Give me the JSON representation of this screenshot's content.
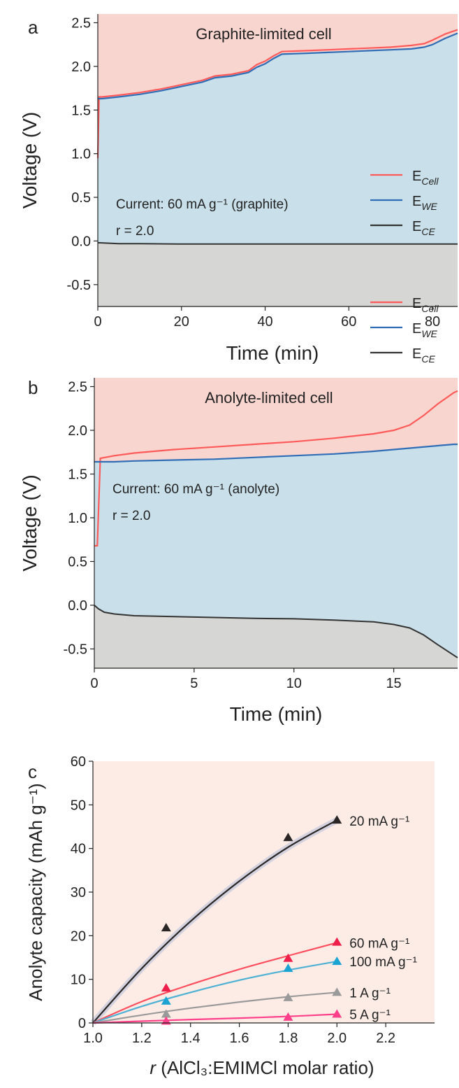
{
  "figure": {
    "panels": [
      "a",
      "b",
      "c"
    ]
  },
  "chart_data": [
    {
      "panel": "a",
      "type": "line",
      "title": "Graphite-limited cell",
      "xlabel": "Time (min)",
      "ylabel": "Voltage (V)",
      "xlim": [
        0,
        86
      ],
      "ylim": [
        -0.75,
        2.6
      ],
      "xticks": [
        0,
        20,
        40,
        60,
        80
      ],
      "yticks": [
        -0.5,
        0.0,
        0.5,
        1.0,
        1.5,
        2.0,
        2.5
      ],
      "annotation": "Current: 60 mA g⁻¹ (graphite)",
      "ratio_label": "r = 2.0",
      "legend_position": "right",
      "area_colors": {
        "cell": "#f9d5d0",
        "we": "#c9e0ea",
        "ce": "#d6d6d4"
      },
      "series": [
        {
          "name": "E_Cell",
          "label_main": "E",
          "label_sub": "Cell",
          "color": "#ff5a5a",
          "x": [
            0,
            0.3,
            1,
            5,
            10,
            15,
            20,
            25,
            28,
            32,
            36,
            38,
            40,
            42,
            44,
            50,
            55,
            60,
            65,
            70,
            75,
            78,
            80,
            83,
            86
          ],
          "y": [
            0.95,
            1.65,
            1.65,
            1.67,
            1.7,
            1.74,
            1.79,
            1.84,
            1.89,
            1.91,
            1.95,
            2.02,
            2.06,
            2.12,
            2.17,
            2.18,
            2.19,
            2.2,
            2.21,
            2.22,
            2.24,
            2.26,
            2.3,
            2.37,
            2.42
          ]
        },
        {
          "name": "E_WE",
          "label_main": "E",
          "label_sub": "WE",
          "color": "#2f6db6",
          "x": [
            0,
            0.3,
            1,
            5,
            10,
            15,
            20,
            25,
            28,
            32,
            36,
            38,
            40,
            42,
            44,
            50,
            55,
            60,
            65,
            70,
            75,
            78,
            80,
            83,
            86
          ],
          "y": [
            1.63,
            1.63,
            1.63,
            1.65,
            1.68,
            1.72,
            1.77,
            1.82,
            1.87,
            1.89,
            1.93,
            1.99,
            2.03,
            2.09,
            2.14,
            2.15,
            2.16,
            2.17,
            2.18,
            2.19,
            2.2,
            2.22,
            2.25,
            2.32,
            2.38
          ]
        },
        {
          "name": "E_CE",
          "label_main": "E",
          "label_sub": "CE",
          "color": "#333333",
          "x": [
            0,
            5,
            10,
            20,
            30,
            40,
            50,
            60,
            70,
            80,
            86
          ],
          "y": [
            -0.02,
            -0.03,
            -0.03,
            -0.035,
            -0.035,
            -0.035,
            -0.035,
            -0.035,
            -0.035,
            -0.035,
            -0.035
          ]
        }
      ]
    },
    {
      "panel": "b",
      "type": "line",
      "title": "Anolyte-limited cell",
      "xlabel": "Time (min)",
      "ylabel": "Voltage (V)",
      "xlim": [
        0,
        18.2
      ],
      "ylim": [
        -0.72,
        2.6
      ],
      "xticks": [
        0,
        5,
        10,
        15
      ],
      "yticks": [
        -0.5,
        0.0,
        0.5,
        1.0,
        1.5,
        2.0,
        2.5
      ],
      "annotation": "Current: 60 mA g⁻¹ (anolyte)",
      "ratio_label": "r = 2.0",
      "legend_position": "right",
      "area_colors": {
        "cell": "#f9d5d0",
        "we": "#c9e0ea",
        "ce": "#d6d6d4"
      },
      "series": [
        {
          "name": "E_Cell",
          "label_main": "E",
          "label_sub": "Cell",
          "color": "#ff5a5a",
          "x": [
            0,
            0.15,
            0.3,
            1,
            2,
            4,
            6,
            8,
            10,
            12,
            14,
            15,
            15.8,
            16.5,
            17.2,
            18,
            18.2
          ],
          "y": [
            0.68,
            0.68,
            1.68,
            1.71,
            1.74,
            1.78,
            1.81,
            1.84,
            1.87,
            1.91,
            1.96,
            2.0,
            2.06,
            2.17,
            2.3,
            2.43,
            2.45
          ]
        },
        {
          "name": "E_WE",
          "label_main": "E",
          "label_sub": "WE",
          "color": "#2f6db6",
          "x": [
            0,
            0.3,
            1,
            2,
            4,
            6,
            8,
            10,
            12,
            14,
            15,
            16,
            17,
            18,
            18.2
          ],
          "y": [
            1.64,
            1.64,
            1.64,
            1.65,
            1.66,
            1.67,
            1.69,
            1.71,
            1.73,
            1.76,
            1.78,
            1.8,
            1.82,
            1.84,
            1.84
          ]
        },
        {
          "name": "E_CE",
          "label_main": "E",
          "label_sub": "CE",
          "color": "#333333",
          "x": [
            0,
            0.2,
            0.5,
            1,
            2,
            4,
            6,
            8,
            10,
            12,
            14,
            15,
            15.8,
            16.5,
            17.2,
            18,
            18.2
          ],
          "y": [
            0.0,
            -0.04,
            -0.08,
            -0.1,
            -0.12,
            -0.13,
            -0.14,
            -0.15,
            -0.155,
            -0.17,
            -0.19,
            -0.22,
            -0.26,
            -0.34,
            -0.45,
            -0.57,
            -0.6
          ]
        }
      ]
    },
    {
      "panel": "c",
      "type": "line",
      "title": "",
      "xlabel": "r (AlCl₃:EMIMCl molar ratio)",
      "xlabel_italic": "r",
      "xlabel_rest": " (AlCl₃:EMIMCl molar ratio)",
      "ylabel": "Anolyte capacity (mAh g⁻¹)",
      "xlim": [
        1.0,
        2.4
      ],
      "ylim": [
        0,
        60
      ],
      "xticks": [
        1.0,
        1.2,
        1.4,
        1.6,
        1.8,
        2.0,
        2.2
      ],
      "xtick_labels": [
        "1.0",
        "1.2",
        "1.4",
        "1.6",
        "1.8",
        "2.0",
        "2.2"
      ],
      "yticks": [
        0,
        10,
        20,
        30,
        40,
        50,
        60
      ],
      "background": "#fdece6",
      "series": [
        {
          "name": "20 mA g⁻¹",
          "color": "#2a2626",
          "marker_color": "#2a2626",
          "points_x": [
            1.3,
            1.8,
            2.0
          ],
          "points_y": [
            21.8,
            42.5,
            46.5
          ],
          "fit_x": [
            1.0,
            1.2,
            1.4,
            1.6,
            1.8,
            2.0
          ],
          "fit_y": [
            0.0,
            12.5,
            23.3,
            32.5,
            40.3,
            46.5
          ]
        },
        {
          "name": "60 mA g⁻¹",
          "color": "#ff4f5e",
          "marker_color": "#ee1f4a",
          "points_x": [
            1.3,
            1.8,
            2.0
          ],
          "points_y": [
            8.0,
            14.8,
            18.5
          ],
          "fit_x": [
            1.0,
            1.2,
            1.4,
            1.6,
            1.8,
            2.0
          ],
          "fit_y": [
            0.0,
            4.9,
            8.8,
            12.3,
            15.4,
            18.4
          ]
        },
        {
          "name": "100 mA g⁻¹",
          "color": "#4fb1d4",
          "marker_color": "#1aa3d3",
          "points_x": [
            1.3,
            1.8,
            2.0
          ],
          "points_y": [
            5.0,
            12.5,
            14.1
          ],
          "fit_x": [
            1.0,
            1.2,
            1.4,
            1.6,
            1.8,
            2.0
          ],
          "fit_y": [
            0.0,
            3.8,
            7.0,
            9.8,
            12.1,
            14.1
          ]
        },
        {
          "name": "1 A g⁻¹",
          "color": "#9a9a9a",
          "marker_color": "#9a9a9a",
          "points_x": [
            1.3,
            1.8,
            2.0
          ],
          "points_y": [
            2.0,
            5.8,
            7.0
          ],
          "fit_x": [
            1.0,
            1.2,
            1.4,
            1.6,
            1.8,
            2.0
          ],
          "fit_y": [
            0.0,
            1.8,
            3.4,
            4.8,
            6.0,
            7.0
          ]
        },
        {
          "name": "5 A g⁻¹",
          "color": "#ff3f8a",
          "marker_color": "#ff3f8a",
          "points_x": [
            1.3,
            1.8,
            2.0
          ],
          "points_y": [
            0.4,
            1.3,
            2.0
          ],
          "fit_x": [
            1.0,
            1.3,
            1.6,
            1.8,
            2.0
          ],
          "fit_y": [
            0.0,
            0.6,
            1.1,
            1.5,
            2.0
          ]
        }
      ]
    }
  ]
}
